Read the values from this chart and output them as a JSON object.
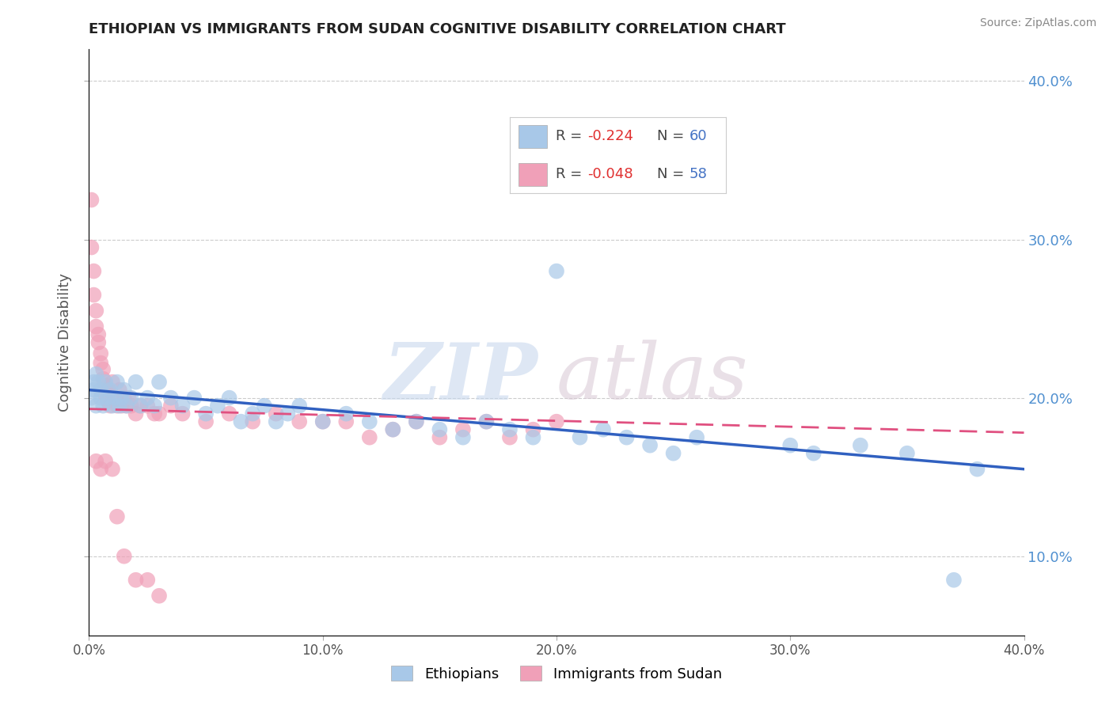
{
  "title": "ETHIOPIAN VS IMMIGRANTS FROM SUDAN COGNITIVE DISABILITY CORRELATION CHART",
  "source": "Source: ZipAtlas.com",
  "ylabel": "Cognitive Disability",
  "xlabel": "",
  "legend_r1": "-0.224",
  "legend_n1": "60",
  "legend_r2": "-0.048",
  "legend_n2": "58",
  "legend_label1": "Ethiopians",
  "legend_label2": "Immigrants from Sudan",
  "xlim": [
    0.0,
    0.4
  ],
  "ylim": [
    0.05,
    0.42
  ],
  "yticks": [
    0.1,
    0.2,
    0.3,
    0.4
  ],
  "ytick_labels": [
    "10.0%",
    "20.0%",
    "30.0%",
    "40.0%"
  ],
  "xticks": [
    0.0,
    0.1,
    0.2,
    0.3,
    0.4
  ],
  "xtick_labels": [
    "0.0%",
    "10.0%",
    "20.0%",
    "30.0%",
    "40.0%"
  ],
  "color_ethiopian": "#a8c8e8",
  "color_sudan": "#f0a0b8",
  "line_color_ethiopian": "#3060c0",
  "line_color_sudan": "#e05080",
  "ethiopian_x": [
    0.001,
    0.002,
    0.002,
    0.003,
    0.003,
    0.004,
    0.005,
    0.005,
    0.006,
    0.007,
    0.008,
    0.009,
    0.01,
    0.011,
    0.012,
    0.013,
    0.014,
    0.015,
    0.016,
    0.018,
    0.02,
    0.022,
    0.025,
    0.028,
    0.03,
    0.035,
    0.04,
    0.045,
    0.05,
    0.055,
    0.06,
    0.065,
    0.07,
    0.075,
    0.08,
    0.085,
    0.09,
    0.1,
    0.11,
    0.12,
    0.13,
    0.14,
    0.15,
    0.16,
    0.17,
    0.18,
    0.19,
    0.2,
    0.21,
    0.22,
    0.23,
    0.24,
    0.25,
    0.26,
    0.3,
    0.31,
    0.33,
    0.35,
    0.37,
    0.38
  ],
  "ethiopian_y": [
    0.2,
    0.205,
    0.21,
    0.195,
    0.215,
    0.21,
    0.2,
    0.205,
    0.195,
    0.21,
    0.2,
    0.205,
    0.195,
    0.2,
    0.21,
    0.195,
    0.2,
    0.205,
    0.195,
    0.2,
    0.21,
    0.195,
    0.2,
    0.195,
    0.21,
    0.2,
    0.195,
    0.2,
    0.19,
    0.195,
    0.2,
    0.185,
    0.19,
    0.195,
    0.185,
    0.19,
    0.195,
    0.185,
    0.19,
    0.185,
    0.18,
    0.185,
    0.18,
    0.175,
    0.185,
    0.18,
    0.175,
    0.28,
    0.175,
    0.18,
    0.175,
    0.17,
    0.165,
    0.175,
    0.17,
    0.165,
    0.17,
    0.165,
    0.085,
    0.155
  ],
  "sudan_x": [
    0.001,
    0.001,
    0.002,
    0.002,
    0.003,
    0.003,
    0.004,
    0.004,
    0.005,
    0.005,
    0.006,
    0.006,
    0.007,
    0.007,
    0.008,
    0.008,
    0.009,
    0.01,
    0.011,
    0.012,
    0.013,
    0.014,
    0.015,
    0.016,
    0.017,
    0.018,
    0.02,
    0.022,
    0.025,
    0.028,
    0.03,
    0.035,
    0.04,
    0.05,
    0.06,
    0.07,
    0.08,
    0.09,
    0.1,
    0.11,
    0.12,
    0.13,
    0.14,
    0.15,
    0.16,
    0.17,
    0.18,
    0.19,
    0.003,
    0.005,
    0.007,
    0.01,
    0.012,
    0.015,
    0.02,
    0.025,
    0.03,
    0.2
  ],
  "sudan_y": [
    0.325,
    0.295,
    0.28,
    0.265,
    0.255,
    0.245,
    0.24,
    0.235,
    0.228,
    0.222,
    0.218,
    0.212,
    0.208,
    0.202,
    0.198,
    0.205,
    0.195,
    0.21,
    0.2,
    0.195,
    0.205,
    0.195,
    0.2,
    0.195,
    0.2,
    0.195,
    0.19,
    0.195,
    0.195,
    0.19,
    0.19,
    0.195,
    0.19,
    0.185,
    0.19,
    0.185,
    0.19,
    0.185,
    0.185,
    0.185,
    0.175,
    0.18,
    0.185,
    0.175,
    0.18,
    0.185,
    0.175,
    0.18,
    0.16,
    0.155,
    0.16,
    0.155,
    0.125,
    0.1,
    0.085,
    0.085,
    0.075,
    0.185
  ],
  "eth_trend_x": [
    0.0,
    0.4
  ],
  "eth_trend_y": [
    0.205,
    0.155
  ],
  "sud_trend_x": [
    0.0,
    0.4
  ],
  "sud_trend_y": [
    0.193,
    0.178
  ]
}
